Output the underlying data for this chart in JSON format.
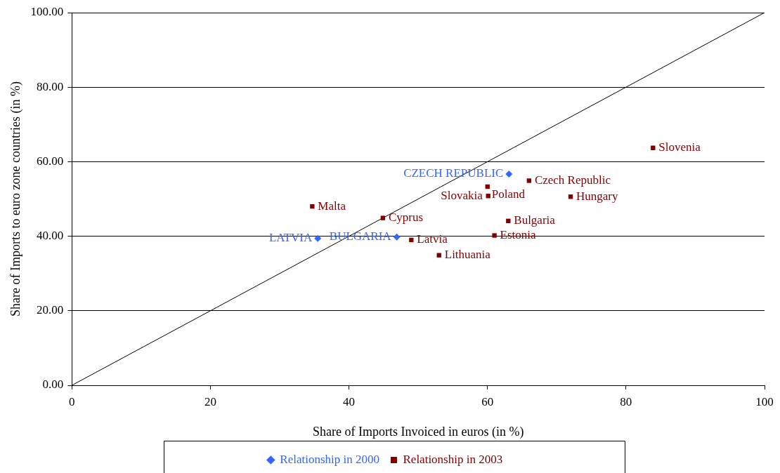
{
  "chart_data": {
    "type": "scatter",
    "xlabel": "Share of Imports Invoiced in euros (in %)",
    "ylabel": "Share of Imports to euro zone countries (in %)",
    "xlim": [
      0,
      100
    ],
    "xticks": [
      0,
      20,
      40,
      60,
      80,
      100
    ],
    "ylim": [
      0,
      100
    ],
    "yticks": [
      {
        "value": 0,
        "label": "0.00"
      },
      {
        "value": 20,
        "label": "20.00"
      },
      {
        "value": 40,
        "label": "40.00"
      },
      {
        "value": 60,
        "label": "60.00"
      },
      {
        "value": 80,
        "label": "80.00"
      },
      {
        "value": 100,
        "label": "100.00"
      }
    ],
    "grid": "y",
    "legend": "bottom",
    "series": [
      {
        "name": "Relationship in 2000",
        "color": "#3366ff",
        "marker": "diamond",
        "x": [
          63.1,
          35.5,
          46.9
        ],
        "values": [
          56.7,
          39.4,
          39.8
        ]
      },
      {
        "name": "Relationship in 2003",
        "color": "#800000",
        "marker": "square",
        "x": [
          83.9,
          66.0,
          60.0,
          60.1,
          72.0,
          63.0,
          61.0,
          34.7,
          44.9,
          49.0,
          53.0
        ],
        "values": [
          63.7,
          54.9,
          53.3,
          50.8,
          50.6,
          44.1,
          40.2,
          48.0,
          44.9,
          39.0,
          34.9
        ]
      },
      {
        "type": "line",
        "color": "#000000",
        "marker": "none",
        "x": [
          0,
          100
        ],
        "values": [
          0,
          100
        ]
      }
    ],
    "annotations": [
      {
        "text": "CZECH REPUBLIC",
        "x": 63.1,
        "y": 56.7
      },
      {
        "text": "LATVIA",
        "x": 35.5,
        "y": 39.4
      },
      {
        "text": "BULGARIA",
        "x": 46.9,
        "y": 39.8
      },
      {
        "text": "Slovenia",
        "x": 83.9,
        "y": 63.7
      },
      {
        "text": "Czech Republic",
        "x": 66.0,
        "y": 54.9
      },
      {
        "text": "Poland",
        "x": 60.0,
        "y": 53.3
      },
      {
        "text": "Slovakia",
        "x": 60.1,
        "y": 50.8
      },
      {
        "text": "Hungary",
        "x": 72.0,
        "y": 50.6
      },
      {
        "text": "Bulgaria",
        "x": 63.0,
        "y": 44.1
      },
      {
        "text": "Estonia",
        "x": 61.0,
        "y": 40.2
      },
      {
        "text": "Malta",
        "x": 34.7,
        "y": 48.0
      },
      {
        "text": "Cyprus",
        "x": 44.9,
        "y": 44.9
      },
      {
        "text": "Latvia",
        "x": 49.0,
        "y": 39.0
      },
      {
        "text": "Lithuania",
        "x": 53.0,
        "y": 34.9
      }
    ]
  }
}
